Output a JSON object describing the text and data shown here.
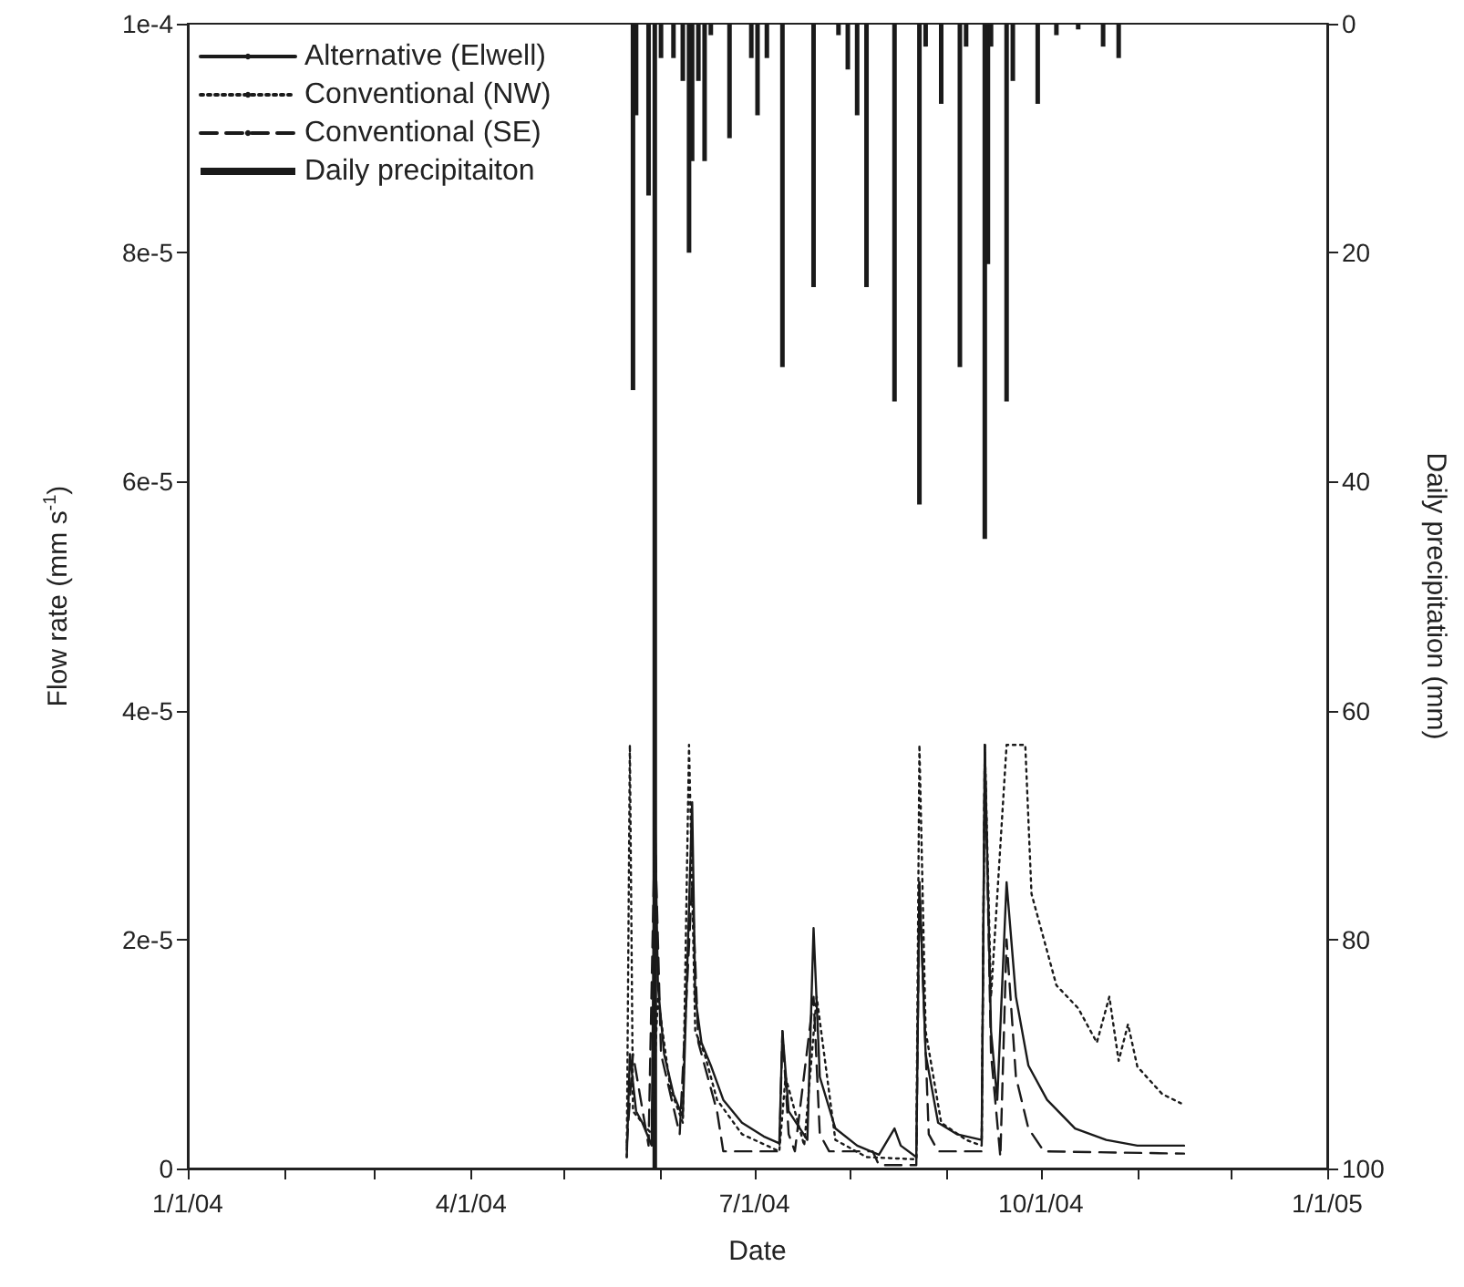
{
  "chart_data": {
    "type": "line",
    "xlabel": "Date",
    "ylabel": "Flow rate (mm s$^{-1}$)",
    "y2label": "Daily precipitation (mm)",
    "xlim": [
      "2004-01-01",
      "2005-01-01"
    ],
    "xticks": [
      {
        "value": "2004-01-01",
        "label": "1/1/04"
      },
      {
        "value": "2004-02-01",
        "label": null
      },
      {
        "value": "2004-03-01",
        "label": null
      },
      {
        "value": "2004-04-01",
        "label": "4/1/04"
      },
      {
        "value": "2004-05-01",
        "label": null
      },
      {
        "value": "2004-06-01",
        "label": null
      },
      {
        "value": "2004-07-01",
        "label": "7/1/04"
      },
      {
        "value": "2004-08-01",
        "label": null
      },
      {
        "value": "2004-09-01",
        "label": null
      },
      {
        "value": "2004-10-01",
        "label": "10/1/04"
      },
      {
        "value": "2004-11-01",
        "label": null
      },
      {
        "value": "2004-12-01",
        "label": null
      },
      {
        "value": "2005-01-01",
        "label": "1/1/05"
      }
    ],
    "ylim": [
      0,
      0.0001
    ],
    "yticks": [
      0,
      {
        "value": 2e-05,
        "label": "2e-5"
      },
      {
        "value": 4e-05,
        "label": "4e-5"
      },
      {
        "value": 6e-05,
        "label": "6e-5"
      },
      {
        "value": 8e-05,
        "label": "8e-5"
      },
      {
        "value": 0.0001,
        "label": "1e-4"
      }
    ],
    "y2lim": [
      100,
      0
    ],
    "y2ticks": [
      0,
      20,
      40,
      60,
      80,
      100
    ],
    "grid": false,
    "legend": "top left",
    "marker": "none",
    "series": [
      {
        "name": "Alternative (Elwell)",
        "color": "#1a1a1a",
        "line_style": "solid",
        "x": [
          "2004-05-21",
          "2004-05-22",
          "2004-05-24",
          "2004-05-26",
          "2004-05-29",
          "2004-05-30",
          "2004-05-31",
          "2004-06-02",
          "2004-06-05",
          "2004-06-08",
          "2004-06-11",
          "2004-06-12",
          "2004-06-14",
          "2004-06-17",
          "2004-06-21",
          "2004-06-27",
          "2004-07-04",
          "2004-07-09",
          "2004-07-10",
          "2004-07-12",
          "2004-07-18",
          "2004-07-20",
          "2004-07-22",
          "2004-07-27",
          "2004-08-03",
          "2004-08-10",
          "2004-08-15",
          "2004-08-17",
          "2004-08-22",
          "2004-08-23",
          "2004-08-25",
          "2004-08-29",
          "2004-09-04",
          "2004-09-12",
          "2004-09-13",
          "2004-09-15",
          "2004-09-17",
          "2004-09-20",
          "2004-09-23",
          "2004-09-27",
          "2004-10-03",
          "2004-10-12",
          "2004-10-22",
          "2004-11-01",
          "2004-11-16"
        ],
        "values": [
          1e-06,
          1e-05,
          5e-06,
          4e-06,
          2e-06,
          3.2e-05,
          1.6e-05,
          1e-05,
          6.5e-06,
          4.5e-06,
          3.2e-05,
          1.5e-05,
          1.1e-05,
          9e-06,
          6e-06,
          4e-06,
          2.8e-06,
          2.2e-06,
          1.2e-05,
          5e-06,
          2.5e-06,
          2.1e-05,
          8e-06,
          3.5e-06,
          2e-06,
          1.2e-06,
          3.5e-06,
          2e-06,
          1e-06,
          2.5e-05,
          1e-05,
          4e-06,
          3e-06,
          2.5e-06,
          3.7e-05,
          1.2e-05,
          6e-06,
          2.5e-05,
          1.5e-05,
          9e-06,
          6e-06,
          3.5e-06,
          2.5e-06,
          2e-06,
          2e-06
        ]
      },
      {
        "name": "Conventional (NW)",
        "color": "#1a1a1a",
        "line_style": "dotted",
        "x": [
          "2004-05-21",
          "2004-05-22",
          "2004-05-23",
          "2004-05-29",
          "2004-05-31",
          "2004-06-04",
          "2004-06-08",
          "2004-06-10",
          "2004-06-12",
          "2004-06-15",
          "2004-06-19",
          "2004-06-27",
          "2004-07-09",
          "2004-07-11",
          "2004-07-17",
          "2004-07-21",
          "2004-07-27",
          "2004-08-06",
          "2004-08-22",
          "2004-08-23",
          "2004-08-25",
          "2004-08-30",
          "2004-09-07",
          "2004-09-12",
          "2004-09-13",
          "2004-09-15",
          "2004-09-20",
          "2004-09-26",
          "2004-09-28",
          "2004-10-06",
          "2004-10-13",
          "2004-10-19",
          "2004-10-23",
          "2004-10-26",
          "2004-10-29",
          "2004-11-01",
          "2004-11-09",
          "2004-11-15"
        ],
        "values": [
          1e-06,
          3.7e-05,
          5e-06,
          3e-06,
          1.5e-05,
          7e-06,
          4e-06,
          3.7e-05,
          1.2e-05,
          1e-05,
          6e-06,
          3e-06,
          1.5e-06,
          8e-06,
          2e-06,
          1.5e-05,
          2.5e-06,
          1e-06,
          8e-07,
          3.7e-05,
          1.2e-05,
          4e-06,
          2.5e-06,
          2e-06,
          3.7e-05,
          1.5e-05,
          3.7e-05,
          3.7e-05,
          2.4e-05,
          1.6e-05,
          1.4e-05,
          1.1e-05,
          1.5e-05,
          9.4e-06,
          1.26e-05,
          8.9e-06,
          6.5e-06,
          5.7e-06
        ]
      },
      {
        "name": "Conventional (SE)",
        "color": "#1a1a1a",
        "line_style": "dashed",
        "x": [
          "2004-05-21",
          "2004-05-23",
          "2004-05-28",
          "2004-05-30",
          "2004-06-01",
          "2004-06-07",
          "2004-06-11",
          "2004-06-13",
          "2004-06-19",
          "2004-06-21",
          "2004-07-09",
          "2004-07-10",
          "2004-07-12",
          "2004-07-14",
          "2004-07-20",
          "2004-07-22",
          "2004-07-25",
          "2004-08-08",
          "2004-08-10",
          "2004-08-22",
          "2004-08-23",
          "2004-08-26",
          "2004-08-29",
          "2004-09-12",
          "2004-09-13",
          "2004-09-15",
          "2004-09-18",
          "2004-09-20",
          "2004-09-23",
          "2004-09-27",
          "2004-10-02",
          "2004-11-16"
        ],
        "values": [
          2e-06,
          1e-05,
          2e-06,
          3e-05,
          1e-05,
          3e-06,
          2.5e-05,
          1.1e-05,
          5e-06,
          1.5e-06,
          1.5e-06,
          1.2e-05,
          3e-06,
          1.5e-06,
          1.5e-05,
          3e-06,
          1.5e-06,
          1.5e-06,
          3e-07,
          3e-07,
          2.5e-05,
          3e-06,
          1.5e-06,
          1.5e-06,
          3.7e-05,
          1e-05,
          1e-06,
          2e-05,
          8e-06,
          3.5e-06,
          1.5e-06,
          1.3e-06
        ]
      },
      {
        "name": "Daily precipitaiton",
        "type": "bar",
        "axis": "y2",
        "color": "#1a1a1a",
        "x": [
          "2004-05-23",
          "2004-05-24",
          "2004-05-28",
          "2004-05-30",
          "2004-06-01",
          "2004-06-05",
          "2004-06-08",
          "2004-06-10",
          "2004-06-11",
          "2004-06-13",
          "2004-06-15",
          "2004-06-17",
          "2004-06-23",
          "2004-06-30",
          "2004-07-02",
          "2004-07-05",
          "2004-07-10",
          "2004-07-20",
          "2004-07-28",
          "2004-07-31",
          "2004-08-03",
          "2004-08-06",
          "2004-08-15",
          "2004-08-23",
          "2004-08-25",
          "2004-08-30",
          "2004-09-05",
          "2004-09-07",
          "2004-09-13",
          "2004-09-14",
          "2004-09-15",
          "2004-09-20",
          "2004-09-22",
          "2004-09-30",
          "2004-10-06",
          "2004-10-13",
          "2004-10-21",
          "2004-10-26"
        ],
        "values": [
          32,
          8,
          15,
          100,
          3,
          3,
          5,
          20,
          12,
          5,
          12,
          1,
          10,
          3,
          8,
          3,
          30,
          23,
          1,
          4,
          8,
          23,
          33,
          42,
          2,
          7,
          30,
          2,
          45,
          21,
          2,
          33,
          5,
          7,
          1,
          0.5,
          2,
          3
        ]
      }
    ]
  }
}
